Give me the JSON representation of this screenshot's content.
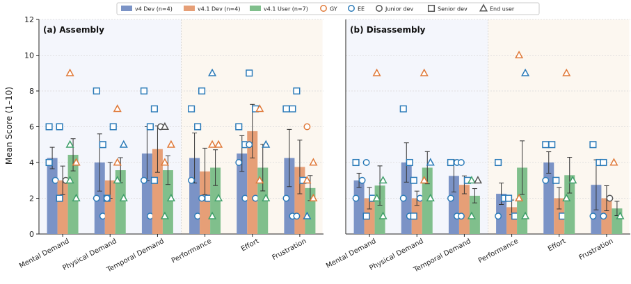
{
  "chart_data": {
    "type": "bar",
    "ylabel": "Mean Score (1–10)",
    "ylim": [
      0,
      12
    ],
    "yticks": [
      0,
      2,
      4,
      6,
      8,
      10,
      12
    ],
    "grid": true,
    "legend_position": "top-center",
    "categories": [
      "Mental Demand",
      "Physical Demand",
      "Temporal Demand",
      "Performance",
      "Effort",
      "Frustration"
    ],
    "series_legend": [
      {
        "name": "v4 Dev (n=4)",
        "color": "#7b93c6"
      },
      {
        "name": "v4.1 Dev (n=4)",
        "color": "#e69f77"
      },
      {
        "name": "v4.1 User (n=7)",
        "color": "#80bf8c"
      }
    ],
    "marker_legend": [
      {
        "name": "GY",
        "shape": "circle",
        "color": "#e07a3a"
      },
      {
        "name": "EE",
        "shape": "circle",
        "color": "#2a7ab8"
      },
      {
        "name": "Junior dev",
        "shape": "circle",
        "color": "#555555"
      },
      {
        "name": "Senior dev",
        "shape": "square",
        "color": "#555555"
      },
      {
        "name": "End user",
        "shape": "triangle",
        "color": "#555555"
      }
    ],
    "panels": [
      {
        "title": "(a) Assembly",
        "series": [
          {
            "name": "v4 Dev (n=4)",
            "values": [
              4.25,
              4.0,
              4.5,
              4.25,
              4.5,
              4.25
            ],
            "errors": [
              0.6,
              1.6,
              1.5,
              1.4,
              1.0,
              1.6
            ]
          },
          {
            "name": "v4.1 Dev (n=4)",
            "values": [
              3.0,
              3.0,
              4.75,
              3.5,
              5.75,
              3.75
            ],
            "errors": [
              0.8,
              1.0,
              1.3,
              1.3,
              1.5,
              1.5
            ]
          },
          {
            "name": "v4.1 User (n=7)",
            "values": [
              4.43,
              3.57,
              3.57,
              3.71,
              3.71,
              2.57
            ],
            "errors": [
              0.9,
              0.7,
              0.8,
              1.0,
              1.3,
              0.7
            ]
          }
        ]
      },
      {
        "title": "(b) Disassembly",
        "series": [
          {
            "name": "v4 Dev (n=4)",
            "values": [
              3.0,
              4.0,
              3.25,
              2.25,
              4.0,
              2.75
            ],
            "errors": [
              0.4,
              1.1,
              0.9,
              0.6,
              0.6,
              1.4
            ]
          },
          {
            "name": "v4.1 Dev (n=4)",
            "values": [
              2.0,
              2.0,
              2.75,
              1.5,
              2.0,
              2.0
            ],
            "errors": [
              0.6,
              0.4,
              0.5,
              0.4,
              0.6,
              0.7
            ]
          },
          {
            "name": "v4.1 User (n=7)",
            "values": [
              2.71,
              3.71,
              2.14,
              3.71,
              3.29,
              1.43
            ],
            "errors": [
              1.1,
              0.9,
              0.4,
              1.5,
              1.0,
              0.4
            ]
          }
        ]
      }
    ]
  }
}
